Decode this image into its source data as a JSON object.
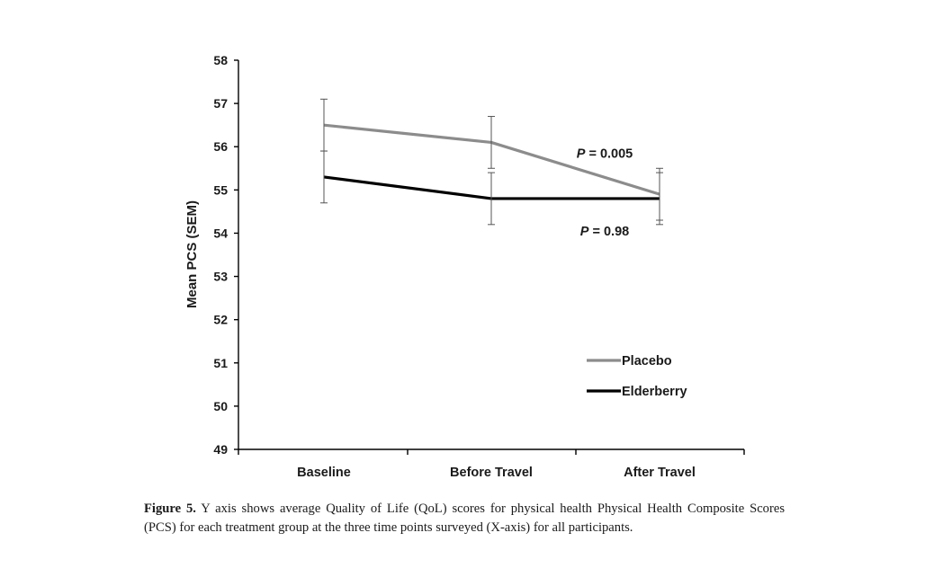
{
  "chart_data": {
    "type": "line",
    "title": "",
    "xlabel": "",
    "ylabel": "Mean PCS (SEM)",
    "categories": [
      "Baseline",
      "Before Travel",
      "After Travel"
    ],
    "ylim": [
      49,
      58
    ],
    "yticks": [
      "49",
      "50",
      "51",
      "52",
      "53",
      "54",
      "55",
      "56",
      "57",
      "58"
    ],
    "series": [
      {
        "name": "Placebo",
        "color": "#8c8c8c",
        "values": [
          56.5,
          56.1,
          54.9
        ],
        "err_low": [
          55.9,
          55.5,
          54.3
        ],
        "err_high": [
          57.1,
          56.7,
          55.5
        ]
      },
      {
        "name": "Elderberry",
        "color": "#000000",
        "values": [
          55.3,
          54.8,
          54.8
        ],
        "err_low": [
          54.7,
          54.2,
          54.2
        ],
        "err_high": [
          55.9,
          55.4,
          55.4
        ]
      }
    ],
    "annotations": [
      {
        "prefix": "P",
        "text": " = 0.005",
        "category_index": 2,
        "y": 55.85
      },
      {
        "prefix": "P",
        "text": " = 0.98",
        "category_index": 2,
        "y": 54.05
      }
    ],
    "legend_position": "bottom-right"
  },
  "caption": {
    "label": "Figure 5.",
    "text": " Y axis shows average Quality of Life (QoL) scores for physical health Physical Health Composite Scores (PCS) for each treatment group at the three time points surveyed (X-axis) for all participants."
  }
}
